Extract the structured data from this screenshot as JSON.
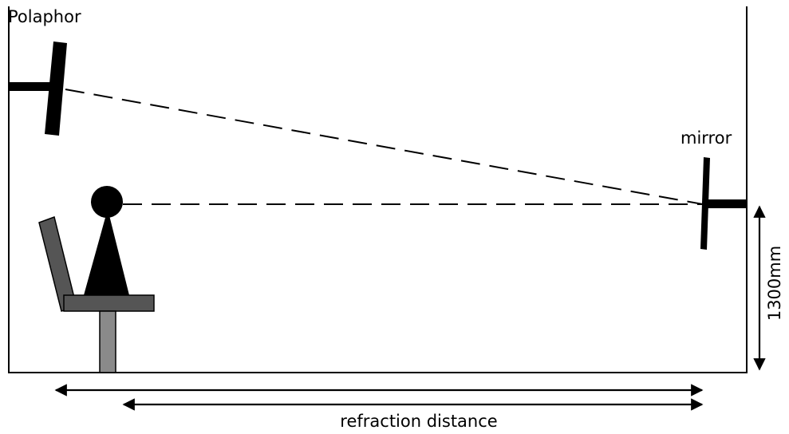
{
  "labels": {
    "polaphor": "Polaphor",
    "mirror": "mirror",
    "height": "1300mm",
    "distance": "refraction distance"
  },
  "colors": {
    "line": "#000000",
    "chair_back": "#555555",
    "chair_seat": "#555555",
    "chair_leg": "#8a8a8a",
    "person": "#000000",
    "background": "#ffffff"
  }
}
